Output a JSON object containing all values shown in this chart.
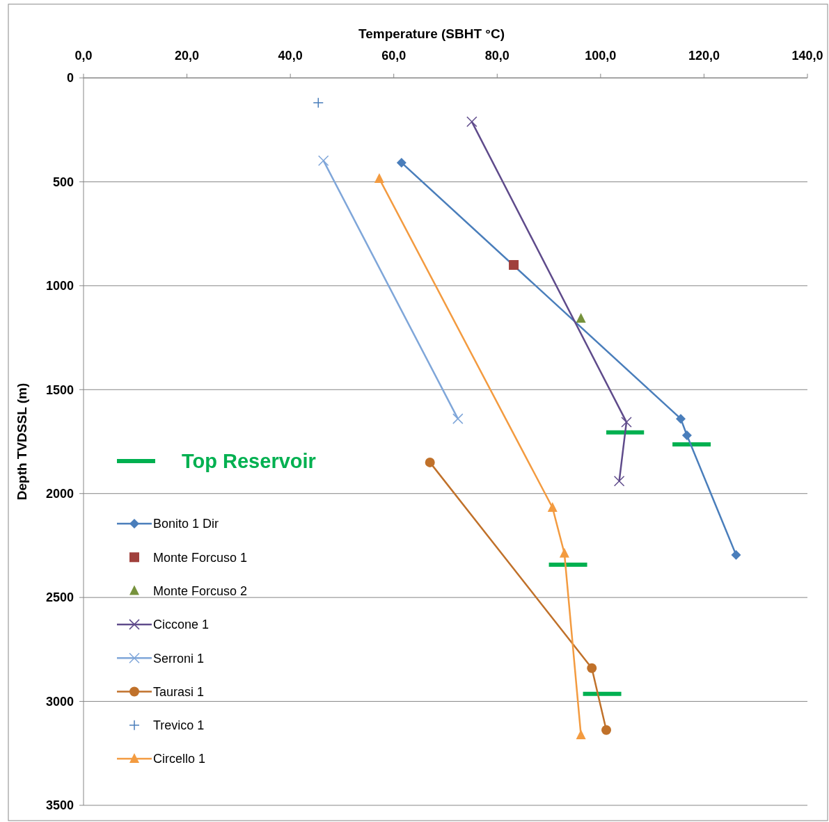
{
  "chart_data": {
    "type": "line",
    "xlabel": "Temperature (SBHT  °C)",
    "ylabel": "Depth TVDSSL (m)",
    "xlim": [
      0,
      140
    ],
    "xticks": [
      {
        "value": 0,
        "label": "0,0"
      },
      {
        "value": 20,
        "label": "20,0"
      },
      {
        "value": 40,
        "label": "40,0"
      },
      {
        "value": 60,
        "label": "60,0"
      },
      {
        "value": 80,
        "label": "80,0"
      },
      {
        "value": 100,
        "label": "100,0"
      },
      {
        "value": 120,
        "label": "120,0"
      },
      {
        "value": 140,
        "label": "140,0"
      }
    ],
    "ylim": [
      3500,
      0
    ],
    "yticks": [
      0,
      500,
      1000,
      1500,
      2000,
      2500,
      3000,
      3500
    ],
    "grid": "y",
    "legend": "left",
    "line_style": "solid",
    "series": [
      {
        "name": "Top Reservoir",
        "marker": "none",
        "color": "#00b050",
        "x": [
          101.1,
          108.4
        ],
        "values": [
          1706,
          1706
        ]
      },
      {
        "marker": "none",
        "color": "#00b050",
        "x": [
          113.9,
          121.3
        ],
        "values": [
          1763,
          1763
        ]
      },
      {
        "marker": "none",
        "color": "#00b050",
        "x": [
          90.0,
          97.4
        ],
        "values": [
          2342,
          2342
        ]
      },
      {
        "marker": "none",
        "color": "#00b050",
        "x": [
          96.6,
          104.0
        ],
        "values": [
          2964,
          2964
        ]
      },
      {
        "name": "Bonito 1 Dir",
        "marker": "diamond",
        "color": "#4a7ebb",
        "x": [
          61.5,
          115.5,
          116.7,
          126.2
        ],
        "values": [
          408,
          1640,
          1720,
          2295
        ]
      },
      {
        "name": "Monte Forcuso 1",
        "type": "scatter",
        "marker": "square",
        "color": "#a0403c",
        "x": [
          83.2
        ],
        "values": [
          900
        ]
      },
      {
        "name": "Monte Forcuso 2",
        "type": "scatter",
        "marker": "triangle",
        "color": "#76923c",
        "x": [
          96.2
        ],
        "values": [
          1158
        ]
      },
      {
        "name": "Ciccone 1",
        "marker": "cross",
        "color": "#5f4b8b",
        "x": [
          75.1,
          105.0,
          103.6
        ],
        "values": [
          211,
          1656,
          1940
        ]
      },
      {
        "name": "Serroni 1",
        "marker": "cross",
        "color": "#7fa6d9",
        "x": [
          46.4,
          72.4
        ],
        "values": [
          398,
          1640
        ]
      },
      {
        "name": "Taurasi 1",
        "marker": "circle",
        "color": "#c0712a",
        "x": [
          67.0,
          98.3,
          101.1
        ],
        "values": [
          1850,
          2840,
          3138
        ]
      },
      {
        "name": "Trevico 1",
        "type": "scatter",
        "marker": "plus",
        "color": "#4a7ebb",
        "x": [
          45.4
        ],
        "values": [
          120
        ]
      },
      {
        "name": "Circello 1",
        "marker": "triangle",
        "color": "#f39b40",
        "x": [
          57.2,
          90.7,
          93.0,
          96.2
        ],
        "values": [
          485,
          2068,
          2288,
          3162
        ]
      }
    ]
  }
}
